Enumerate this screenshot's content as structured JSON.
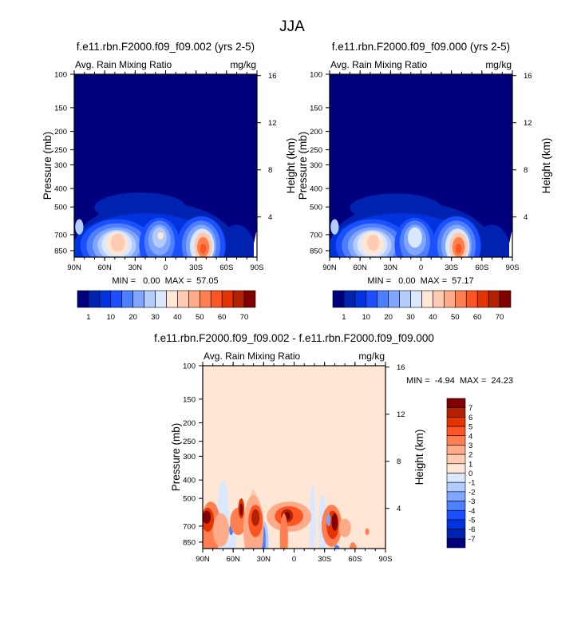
{
  "title": "JJA",
  "palette": [
    "#00007f",
    "#0022b0",
    "#0033dd",
    "#1a50ff",
    "#4d7fff",
    "#80a6ff",
    "#b3ccff",
    "#d9e8ff",
    "#ffe6d5",
    "#ffccb3",
    "#ffaa88",
    "#ff7f50",
    "#ff5522",
    "#e63300",
    "#b32200",
    "#800000"
  ],
  "chart_data": [
    {
      "type": "heatmap",
      "title": "f.e11.rbn.F2000.f09_f09.002 (yrs 2-5)",
      "left_string": "Avg. Rain Mixing Ratio",
      "right_string": "mg/kg",
      "ylabel": "Pressure (mb)",
      "ylabel_right": "Height (km)",
      "x_ticks": [
        "90N",
        "60N",
        "30N",
        "0",
        "30S",
        "60S",
        "90S"
      ],
      "y_ticks": [
        100,
        150,
        200,
        250,
        300,
        400,
        500,
        700,
        850
      ],
      "y_right_ticks": [
        16,
        12,
        8,
        4
      ],
      "stats": "MIN =   0.00  MAX =  57.05",
      "min": 0.0,
      "max": 57.05,
      "colorbar_labels": [
        "1",
        "10",
        "20",
        "30",
        "40",
        "50",
        "60",
        "70"
      ],
      "background_level": 0,
      "blobs": [
        {
          "lat": 10,
          "w": 80,
          "ptop": 470,
          "pbot": 1400,
          "lev": 1
        },
        {
          "lat": 25,
          "w": 45,
          "ptop": 420,
          "pbot": 600,
          "lev": 1
        },
        {
          "lat": 20,
          "w": 72,
          "ptop": 540,
          "pbot": 1300,
          "lev": 2
        },
        {
          "lat": -70,
          "w": 18,
          "ptop": 620,
          "pbot": 1200,
          "lev": 1
        },
        {
          "lat": 48,
          "w": 36,
          "ptop": 580,
          "pbot": 1100,
          "lev": 3
        },
        {
          "lat": 48,
          "w": 30,
          "ptop": 610,
          "pbot": 1050,
          "lev": 4
        },
        {
          "lat": 48,
          "w": 24,
          "ptop": 640,
          "pbot": 1000,
          "lev": 5
        },
        {
          "lat": 48,
          "w": 19,
          "ptop": 660,
          "pbot": 960,
          "lev": 6
        },
        {
          "lat": 48,
          "w": 15,
          "ptop": 670,
          "pbot": 930,
          "lev": 7
        },
        {
          "lat": 48,
          "w": 11,
          "ptop": 680,
          "pbot": 900,
          "lev": 8
        },
        {
          "lat": 47,
          "w": 7,
          "ptop": 690,
          "pbot": 860,
          "lev": 9
        },
        {
          "lat": 6,
          "w": 20,
          "ptop": 570,
          "pbot": 1100,
          "lev": 3
        },
        {
          "lat": 6,
          "w": 15,
          "ptop": 590,
          "pbot": 1000,
          "lev": 4
        },
        {
          "lat": 6,
          "w": 11,
          "ptop": 620,
          "pbot": 900,
          "lev": 5
        },
        {
          "lat": 6,
          "w": 7,
          "ptop": 640,
          "pbot": 820,
          "lev": 6
        },
        {
          "lat": 5,
          "w": 3,
          "ptop": 680,
          "pbot": 740,
          "lev": 8
        },
        {
          "lat": 85,
          "w": 4,
          "ptop": 580,
          "pbot": 700,
          "lev": 6
        },
        {
          "lat": -35,
          "w": 24,
          "ptop": 560,
          "pbot": 1150,
          "lev": 3
        },
        {
          "lat": -35,
          "w": 19,
          "ptop": 590,
          "pbot": 1080,
          "lev": 4
        },
        {
          "lat": -35,
          "w": 15,
          "ptop": 620,
          "pbot": 1030,
          "lev": 5
        },
        {
          "lat": -36,
          "w": 12,
          "ptop": 650,
          "pbot": 1000,
          "lev": 7
        },
        {
          "lat": -37,
          "w": 9,
          "ptop": 680,
          "pbot": 960,
          "lev": 9
        },
        {
          "lat": -37,
          "w": 6,
          "ptop": 720,
          "pbot": 920,
          "lev": 11
        },
        {
          "lat": -37,
          "w": 3,
          "ptop": 780,
          "pbot": 880,
          "lev": 12
        }
      ]
    },
    {
      "type": "heatmap",
      "title": "f.e11.rbn.F2000.f09_f09.000 (yrs 2-5)",
      "left_string": "Avg. Rain Mixing Ratio",
      "right_string": "mg/kg",
      "ylabel": "Pressure (mb)",
      "ylabel_right": "Height (km)",
      "x_ticks": [
        "90N",
        "60N",
        "30N",
        "0",
        "30S",
        "60S",
        "90S"
      ],
      "y_ticks": [
        100,
        150,
        200,
        250,
        300,
        400,
        500,
        700,
        850
      ],
      "y_right_ticks": [
        16,
        12,
        8,
        4
      ],
      "stats": "MIN =   0.00  MAX =  57.17",
      "min": 0.0,
      "max": 57.17,
      "colorbar_labels": [
        "1",
        "10",
        "20",
        "30",
        "40",
        "50",
        "60",
        "70"
      ],
      "background_level": 0,
      "blobs": [
        {
          "lat": 10,
          "w": 80,
          "ptop": 470,
          "pbot": 1400,
          "lev": 1
        },
        {
          "lat": 25,
          "w": 45,
          "ptop": 425,
          "pbot": 600,
          "lev": 1
        },
        {
          "lat": 20,
          "w": 72,
          "ptop": 540,
          "pbot": 1300,
          "lev": 2
        },
        {
          "lat": -70,
          "w": 18,
          "ptop": 620,
          "pbot": 1200,
          "lev": 1
        },
        {
          "lat": 48,
          "w": 36,
          "ptop": 580,
          "pbot": 1100,
          "lev": 3
        },
        {
          "lat": 48,
          "w": 30,
          "ptop": 610,
          "pbot": 1050,
          "lev": 4
        },
        {
          "lat": 48,
          "w": 24,
          "ptop": 640,
          "pbot": 1000,
          "lev": 5
        },
        {
          "lat": 48,
          "w": 19,
          "ptop": 660,
          "pbot": 960,
          "lev": 6
        },
        {
          "lat": 48,
          "w": 15,
          "ptop": 670,
          "pbot": 930,
          "lev": 7
        },
        {
          "lat": 48,
          "w": 11,
          "ptop": 680,
          "pbot": 900,
          "lev": 8
        },
        {
          "lat": 47,
          "w": 6,
          "ptop": 700,
          "pbot": 850,
          "lev": 9
        },
        {
          "lat": 6,
          "w": 20,
          "ptop": 570,
          "pbot": 1100,
          "lev": 3
        },
        {
          "lat": 6,
          "w": 15,
          "ptop": 590,
          "pbot": 1000,
          "lev": 4
        },
        {
          "lat": 6,
          "w": 11,
          "ptop": 620,
          "pbot": 900,
          "lev": 5
        },
        {
          "lat": 6,
          "w": 7,
          "ptop": 640,
          "pbot": 820,
          "lev": 7
        },
        {
          "lat": 85,
          "w": 4,
          "ptop": 580,
          "pbot": 700,
          "lev": 6
        },
        {
          "lat": -35,
          "w": 24,
          "ptop": 560,
          "pbot": 1150,
          "lev": 3
        },
        {
          "lat": -35,
          "w": 19,
          "ptop": 590,
          "pbot": 1080,
          "lev": 4
        },
        {
          "lat": -35,
          "w": 15,
          "ptop": 620,
          "pbot": 1030,
          "lev": 5
        },
        {
          "lat": -36,
          "w": 12,
          "ptop": 650,
          "pbot": 1000,
          "lev": 7
        },
        {
          "lat": -37,
          "w": 9,
          "ptop": 680,
          "pbot": 960,
          "lev": 9
        },
        {
          "lat": -37,
          "w": 6,
          "ptop": 720,
          "pbot": 920,
          "lev": 11
        },
        {
          "lat": -37,
          "w": 3,
          "ptop": 780,
          "pbot": 880,
          "lev": 12
        }
      ]
    },
    {
      "type": "heatmap",
      "title": "f.e11.rbn.F2000.f09_f09.002 - f.e11.rbn.F2000.f09_f09.000",
      "left_string": "Avg. Rain Mixing Ratio",
      "right_string": "mg/kg",
      "ylabel": "Pressure (mb)",
      "ylabel_right": "Height (km)",
      "x_ticks": [
        "90N",
        "60N",
        "30N",
        "0",
        "30S",
        "60S",
        "90S"
      ],
      "y_ticks": [
        100,
        150,
        200,
        250,
        300,
        400,
        500,
        700,
        850
      ],
      "y_right_ticks": [
        16,
        12,
        8,
        4
      ],
      "stats": "MIN =  -4.94  MAX =  24.23",
      "min": -4.94,
      "max": 24.23,
      "colorbar_labels": [
        "7",
        "6",
        "5",
        "4",
        "3",
        "2",
        "1",
        "0",
        "-1",
        "-2",
        "-3",
        "-4",
        "-5",
        "-6",
        "-7"
      ],
      "background_level": 8,
      "blobs": [
        {
          "lat": 70,
          "w": 6,
          "ptop": 400,
          "pbot": 1100,
          "lev": 7
        },
        {
          "lat": 40,
          "w": 4,
          "ptop": 450,
          "pbot": 700,
          "lev": 9
        },
        {
          "lat": -18,
          "w": 3,
          "ptop": 420,
          "pbot": 1100,
          "lev": 7
        },
        {
          "lat": -28,
          "w": 4,
          "ptop": 480,
          "pbot": 1100,
          "lev": 7
        },
        {
          "lat": 62,
          "w": 5,
          "ptop": 650,
          "pbot": 1100,
          "lev": 7
        },
        {
          "lat": 30,
          "w": 5,
          "ptop": 660,
          "pbot": 1100,
          "lev": 6
        },
        {
          "lat": 30,
          "w": 2,
          "ptop": 700,
          "pbot": 1000,
          "lev": 4
        },
        {
          "lat": 62,
          "w": 2,
          "ptop": 690,
          "pbot": 780,
          "lev": 4
        },
        {
          "lat": 82,
          "w": 10,
          "ptop": 520,
          "pbot": 1000,
          "lev": 11
        },
        {
          "lat": 85,
          "w": 6,
          "ptop": 560,
          "pbot": 750,
          "lev": 13
        },
        {
          "lat": 86,
          "w": 4,
          "ptop": 580,
          "pbot": 680,
          "lev": 15
        },
        {
          "lat": 72,
          "w": 8,
          "ptop": 600,
          "pbot": 900,
          "lev": 10
        },
        {
          "lat": 55,
          "w": 8,
          "ptop": 560,
          "pbot": 780,
          "lev": 11
        },
        {
          "lat": 52,
          "w": 3,
          "ptop": 500,
          "pbot": 640,
          "lev": 13
        },
        {
          "lat": 52,
          "w": 1.5,
          "ptop": 530,
          "pbot": 620,
          "lev": 15
        },
        {
          "lat": 40,
          "w": 10,
          "ptop": 480,
          "pbot": 1100,
          "lev": 10
        },
        {
          "lat": 38,
          "w": 7,
          "ptop": 540,
          "pbot": 800,
          "lev": 12
        },
        {
          "lat": 38,
          "w": 4,
          "ptop": 570,
          "pbot": 700,
          "lev": 14
        },
        {
          "lat": 5,
          "w": 22,
          "ptop": 520,
          "pbot": 750,
          "lev": 10
        },
        {
          "lat": 5,
          "w": 14,
          "ptop": 550,
          "pbot": 700,
          "lev": 12
        },
        {
          "lat": 7,
          "w": 6,
          "ptop": 570,
          "pbot": 670,
          "lev": 14
        },
        {
          "lat": 7,
          "w": 3,
          "ptop": 590,
          "pbot": 650,
          "lev": 15
        },
        {
          "lat": 10,
          "w": 4,
          "ptop": 600,
          "pbot": 1100,
          "lev": 11
        },
        {
          "lat": -37,
          "w": 10,
          "ptop": 540,
          "pbot": 900,
          "lev": 11
        },
        {
          "lat": -38,
          "w": 6,
          "ptop": 580,
          "pbot": 820,
          "lev": 13
        },
        {
          "lat": -40,
          "w": 3,
          "ptop": 600,
          "pbot": 740,
          "lev": 15
        },
        {
          "lat": -34,
          "w": 2,
          "ptop": 600,
          "pbot": 700,
          "lev": 5
        },
        {
          "lat": -50,
          "w": 6,
          "ptop": 640,
          "pbot": 800,
          "lev": 10
        },
        {
          "lat": -58,
          "w": 4,
          "ptop": 850,
          "pbot": 1100,
          "lev": 11
        },
        {
          "lat": -72,
          "w": 2,
          "ptop": 720,
          "pbot": 780,
          "lev": 11
        },
        {
          "lat": -42,
          "w": 3,
          "ptop": 880,
          "pbot": 1000,
          "lev": 4
        }
      ]
    }
  ]
}
